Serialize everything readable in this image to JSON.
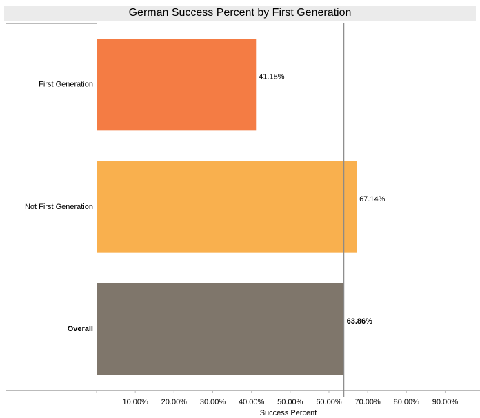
{
  "chart_data": {
    "type": "bar",
    "orientation": "horizontal",
    "title": "German Success Percent by First Generation",
    "categories": [
      "First Generation",
      "Not First Generation",
      "Overall"
    ],
    "values": [
      41.18,
      67.14,
      63.86
    ],
    "value_labels": [
      "41.18%",
      "67.14%",
      "63.86%"
    ],
    "colors": [
      "#f47c44",
      "#f9b04e",
      "#7f766b"
    ],
    "xlabel": "Success Percent",
    "xlim": [
      0,
      99
    ],
    "xticks": [
      {
        "value": 10,
        "label": "10.00%"
      },
      {
        "value": 20,
        "label": "20.00%"
      },
      {
        "value": 30,
        "label": "30.00%"
      },
      {
        "value": 40,
        "label": "40.00%"
      },
      {
        "value": 50,
        "label": "50.00%"
      },
      {
        "value": 60,
        "label": "60.00%"
      },
      {
        "value": 70,
        "label": "70.00%"
      },
      {
        "value": 80,
        "label": "80.00%"
      },
      {
        "value": 90,
        "label": "90.00%"
      }
    ],
    "reference_line": {
      "value": 63.86
    },
    "grid": false
  }
}
